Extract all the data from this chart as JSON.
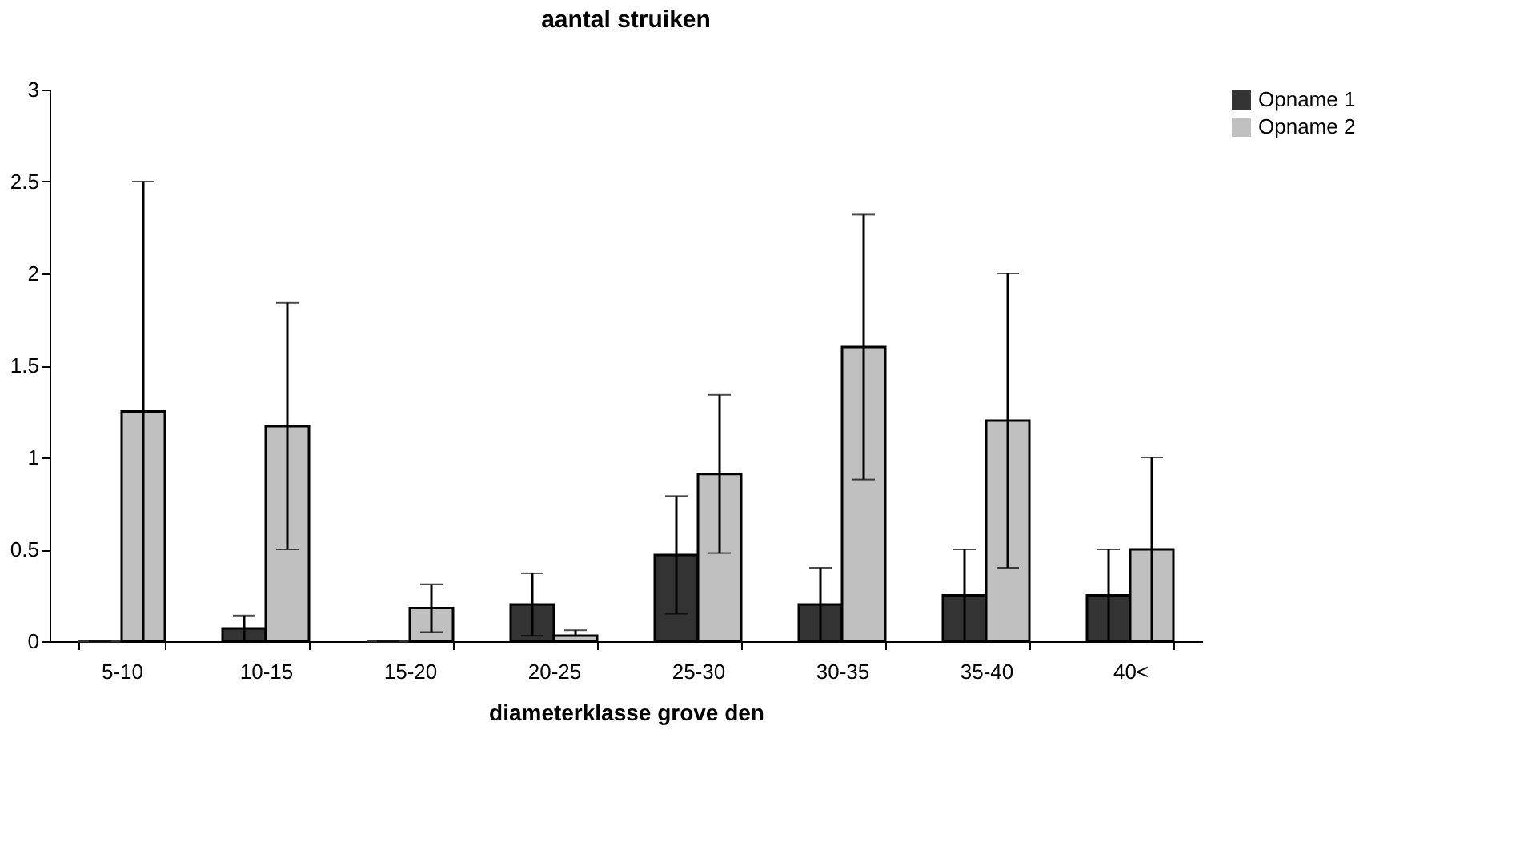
{
  "chart_data": {
    "type": "bar",
    "title": "aantal struiken",
    "xlabel": "diameterklasse grove den",
    "categories": [
      "5-10",
      "10-15",
      "15-20",
      "20-25",
      "25-30",
      "30-35",
      "35-40",
      "40<"
    ],
    "series": [
      {
        "name": "Opname 1",
        "color": "#333333",
        "values": [
          0,
          0.07,
          0,
          0.2,
          0.47,
          0.2,
          0.25,
          0.25
        ],
        "errors": [
          0,
          0.07,
          0,
          0.17,
          0.32,
          0.2,
          0.25,
          0.25
        ]
      },
      {
        "name": "Opname 2",
        "color": "#c0c0c0",
        "values": [
          1.25,
          1.17,
          0.18,
          0.03,
          0.91,
          1.6,
          1.2,
          0.5
        ],
        "errors": [
          1.25,
          0.67,
          0.13,
          [
            0.03,
            0.06
          ],
          0.43,
          0.72,
          0.8,
          0.5
        ]
      }
    ],
    "ylim": [
      0,
      3
    ],
    "yticks": [
      0,
      0.5,
      1,
      1.5,
      2,
      2.5,
      3
    ],
    "grid": false,
    "legend": "right"
  }
}
